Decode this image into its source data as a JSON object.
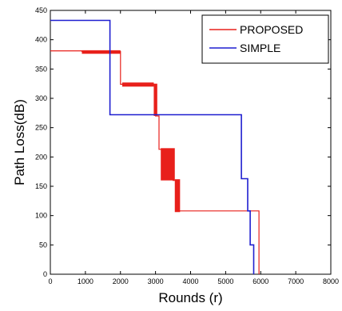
{
  "chart_data": {
    "type": "line",
    "title": "",
    "xlabel": "Rounds (r)",
    "ylabel": "Path Loss(dB)",
    "xlim": [
      0,
      8000
    ],
    "ylim": [
      0,
      450
    ],
    "xticks": [
      0,
      1000,
      2000,
      3000,
      4000,
      5000,
      6000,
      7000,
      8000
    ],
    "yticks": [
      0,
      50,
      100,
      150,
      200,
      250,
      300,
      350,
      400,
      450
    ],
    "grid": false,
    "legend_position": "top-right",
    "series": [
      {
        "name": "PROPOSED",
        "color": "#e8201b",
        "points": [
          [
            0,
            381
          ],
          [
            900,
            381
          ],
          [
            900,
            380
          ],
          [
            2000,
            380
          ],
          [
            2000,
            324
          ],
          [
            2950,
            324
          ],
          [
            2950,
            323
          ],
          [
            3000,
            323
          ],
          [
            3000,
            270
          ],
          [
            3100,
            270
          ],
          [
            3100,
            213
          ],
          [
            3500,
            213
          ],
          [
            3500,
            160
          ],
          [
            3600,
            160
          ],
          [
            3600,
            108
          ],
          [
            5950,
            108
          ],
          [
            5950,
            0
          ]
        ],
        "bands": [
          {
            "x": [
              900,
              2000
            ],
            "y": [
              376,
              382
            ]
          },
          {
            "x": [
              2050,
              2950
            ],
            "y": [
              320,
              327
            ]
          },
          {
            "x": [
              2950,
              3050
            ],
            "y": [
              270,
              325
            ]
          },
          {
            "x": [
              3150,
              3550
            ],
            "y": [
              160,
              215
            ]
          },
          {
            "x": [
              3550,
              3700
            ],
            "y": [
              106,
              162
            ]
          }
        ]
      },
      {
        "name": "SIMPLE",
        "color": "#1f1fd0",
        "points": [
          [
            0,
            433
          ],
          [
            1700,
            433
          ],
          [
            1700,
            272
          ],
          [
            5450,
            272
          ],
          [
            5450,
            163
          ],
          [
            5630,
            163
          ],
          [
            5630,
            108
          ],
          [
            5700,
            108
          ],
          [
            5700,
            50
          ],
          [
            5800,
            50
          ],
          [
            5800,
            0
          ]
        ]
      }
    ]
  }
}
